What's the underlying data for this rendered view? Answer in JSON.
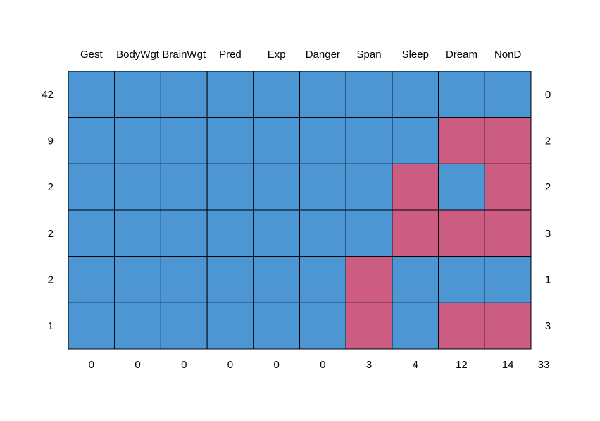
{
  "chart_data": {
    "type": "heatmap",
    "title": "",
    "columns": [
      "Gest",
      "BodyWgt",
      "BrainWgt",
      "Pred",
      "Exp",
      "Danger",
      "Span",
      "Sleep",
      "Dream",
      "NonD"
    ],
    "row_counts": [
      42,
      9,
      2,
      2,
      2,
      1
    ],
    "row_missing_totals": [
      0,
      2,
      2,
      3,
      1,
      3
    ],
    "column_missing_totals": [
      0,
      0,
      0,
      0,
      0,
      0,
      3,
      4,
      12,
      14
    ],
    "grand_total_missing": 33,
    "pattern": [
      [
        1,
        1,
        1,
        1,
        1,
        1,
        1,
        1,
        1,
        1
      ],
      [
        1,
        1,
        1,
        1,
        1,
        1,
        1,
        1,
        0,
        0
      ],
      [
        1,
        1,
        1,
        1,
        1,
        1,
        1,
        0,
        1,
        0
      ],
      [
        1,
        1,
        1,
        1,
        1,
        1,
        1,
        0,
        0,
        0
      ],
      [
        1,
        1,
        1,
        1,
        1,
        1,
        0,
        1,
        1,
        1
      ],
      [
        1,
        1,
        1,
        1,
        1,
        1,
        0,
        1,
        0,
        0
      ]
    ],
    "legend": "none",
    "colors": {
      "observed": "#4b96d3",
      "missing": "#cd5c82",
      "border": "#000000"
    }
  }
}
